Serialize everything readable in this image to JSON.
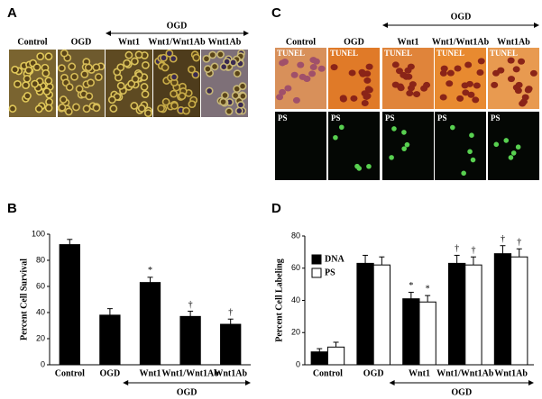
{
  "panel_a": {
    "label": "A",
    "group_label": "OGD",
    "column_labels": [
      "Control",
      "OGD",
      "Wnt1",
      "Wnt1/Wnt1Ab",
      "Wnt1Ab"
    ]
  },
  "panel_c": {
    "label": "C",
    "group_label": "OGD",
    "column_labels": [
      "Control",
      "OGD",
      "Wnt1",
      "Wnt1/Wnt1Ab",
      "Wnt1Ab"
    ],
    "row_labels": [
      "TUNEL",
      "PS"
    ]
  },
  "chart_data": [
    {
      "type": "bar",
      "panel": "B",
      "ylabel": "Percent Cell Survival",
      "group_label": "OGD",
      "categories": [
        "Control",
        "OGD",
        "Wnt1",
        "Wnt1/Wnt1Ab",
        "Wnt1Ab"
      ],
      "values": [
        92,
        38,
        63,
        37,
        31
      ],
      "errors": [
        4,
        5,
        4,
        4,
        4
      ],
      "markers": [
        null,
        null,
        "*",
        "†",
        "†"
      ],
      "color": "#000000",
      "ylim": [
        0,
        100
      ],
      "yticks": [
        0,
        20,
        40,
        60,
        80,
        100
      ]
    },
    {
      "type": "grouped_bar",
      "panel": "D",
      "ylabel": "Percent Cell Labeling",
      "group_label": "OGD",
      "categories": [
        "Control",
        "OGD",
        "Wnt1",
        "Wnt1/Wnt1Ab",
        "Wnt1Ab"
      ],
      "series": [
        {
          "name": "DNA",
          "color": "#000000",
          "values": [
            8,
            63,
            41,
            63,
            69
          ],
          "errors": [
            2,
            5,
            4,
            5,
            5
          ],
          "markers": [
            null,
            null,
            "*",
            "†",
            "†"
          ]
        },
        {
          "name": "PS",
          "color": "#ffffff",
          "values": [
            11,
            62,
            39,
            62,
            67
          ],
          "errors": [
            3,
            5,
            4,
            5,
            5
          ],
          "markers": [
            null,
            null,
            "*",
            "†",
            "†"
          ]
        }
      ],
      "legend": "upper left",
      "ylim": [
        0,
        80
      ],
      "yticks": [
        0,
        20,
        40,
        60,
        80
      ]
    }
  ]
}
